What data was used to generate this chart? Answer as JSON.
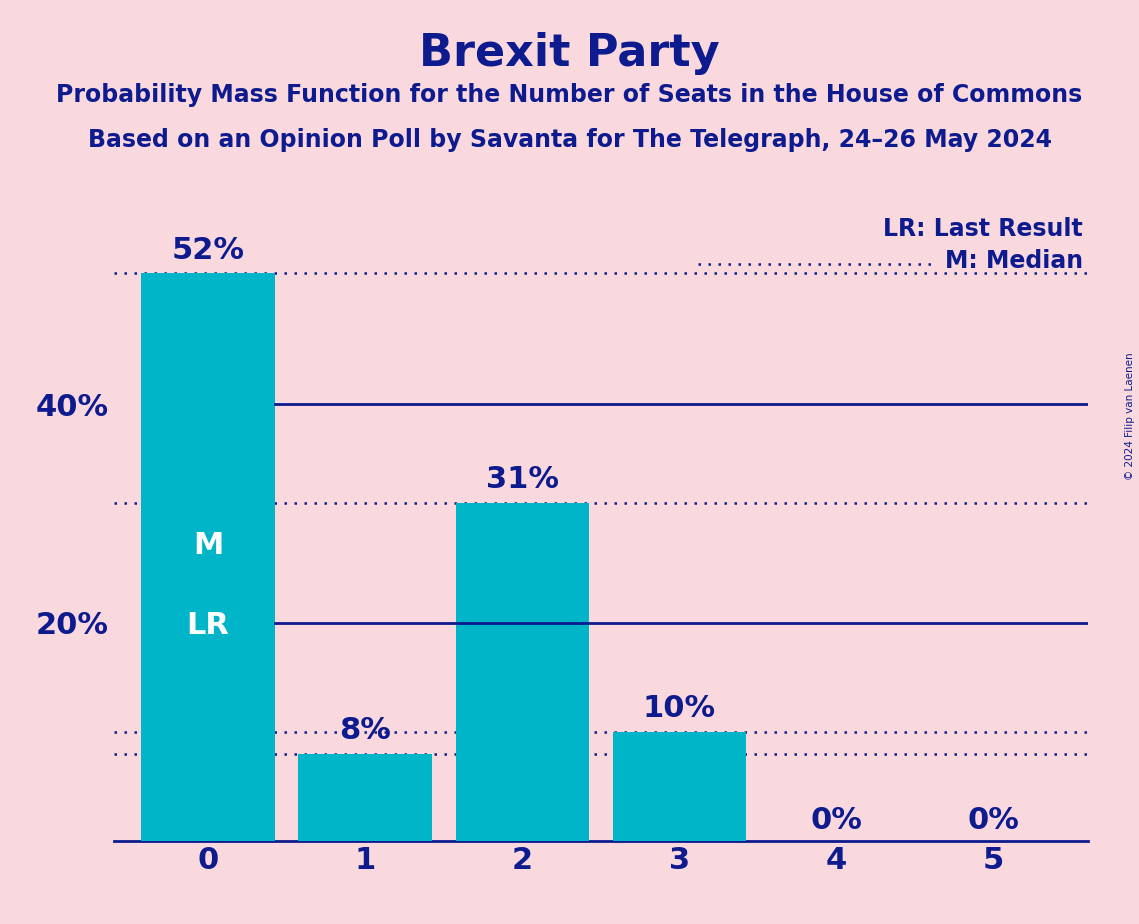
{
  "title": "Brexit Party",
  "subtitle1": "Probability Mass Function for the Number of Seats in the House of Commons",
  "subtitle2": "Based on an Opinion Poll by Savanta for The Telegraph, 24–26 May 2024",
  "categories": [
    0,
    1,
    2,
    3,
    4,
    5
  ],
  "values": [
    52,
    8,
    31,
    10,
    0,
    0
  ],
  "bar_color": "#00B5C8",
  "background_color": "#FAD9DE",
  "text_color": "#0D1B8E",
  "bar_label_color_dark": "#0D1B8E",
  "median_label": "M",
  "last_result_label": "LR",
  "legend_lr": "LR: Last Result",
  "legend_m": "M: Median",
  "ylim": [
    0,
    58
  ],
  "copyright": "© 2024 Filip van Laenen",
  "solid_line_color": "#0D1B8E",
  "dotted_line_color": "#0D1B8E",
  "title_fontsize": 32,
  "subtitle_fontsize": 17,
  "bar_label_fontsize": 22,
  "ytick_fontsize": 22,
  "xtick_fontsize": 22,
  "legend_fontsize": 17,
  "inside_label_fontsize": 22,
  "median_bar": 0,
  "last_result_bar": 0
}
